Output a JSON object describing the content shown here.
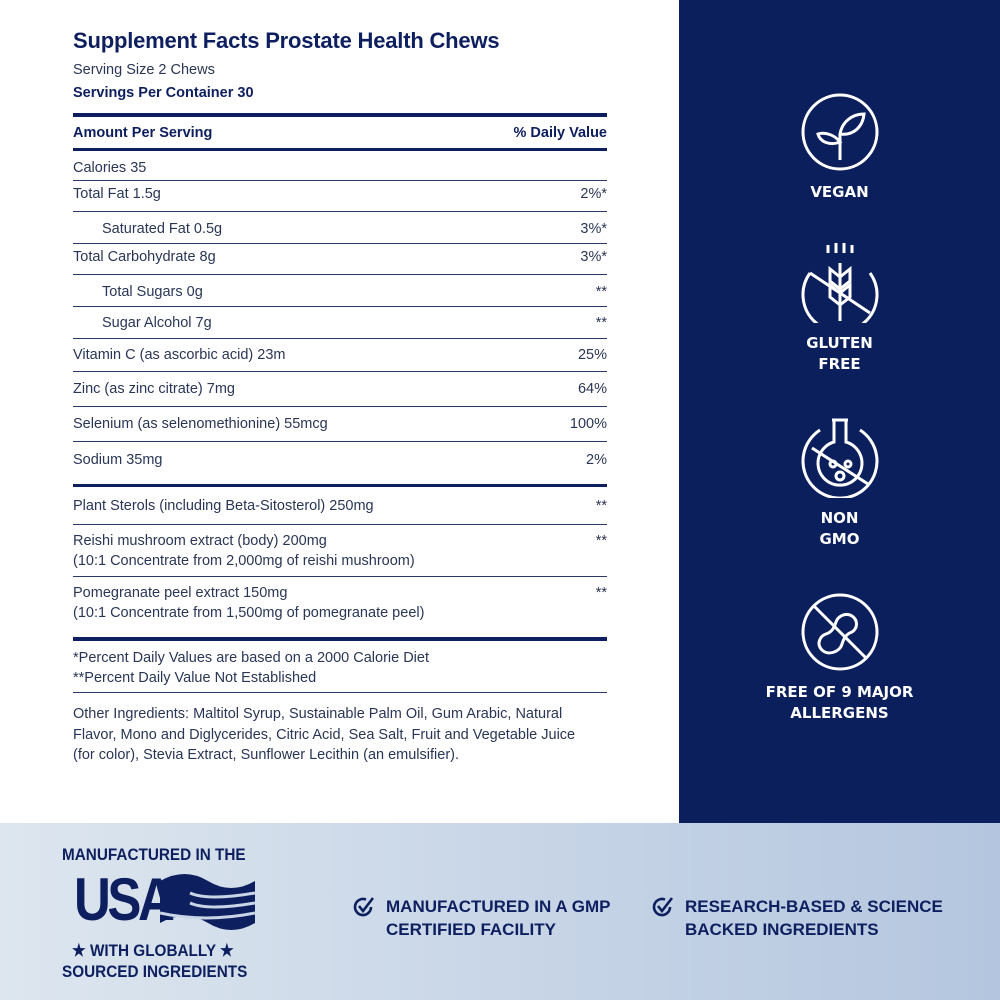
{
  "title": "Supplement Facts Prostate Health Chews",
  "serving_size": "Serving Size 2 Chews",
  "servings_per_container": "Servings Per Container 30",
  "header": {
    "amount": "Amount Per Serving",
    "dv": "% Daily Value"
  },
  "rows": [
    {
      "name": "Calories 35",
      "dv": ""
    },
    {
      "name": "Total Fat 1.5g",
      "dv": "2%*"
    },
    {
      "name": "Saturated Fat 0.5g",
      "dv": "3%*"
    },
    {
      "name": "Total Carbohydrate 8g",
      "dv": "3%*"
    },
    {
      "name": "Total Sugars 0g",
      "dv": "**"
    },
    {
      "name": "Sugar Alcohol 7g",
      "dv": "**"
    },
    {
      "name": "Vitamin C (as ascorbic acid) 23m",
      "dv": "25%"
    },
    {
      "name": "Zinc (as zinc citrate) 7mg",
      "dv": "64%"
    },
    {
      "name": "Selenium (as selenomethionine) 55mcg",
      "dv": "100%"
    },
    {
      "name": "Sodium 35mg",
      "dv": "2%"
    },
    {
      "name": "Plant Sterols (including Beta-Sitosterol) 250mg",
      "dv": "**"
    },
    {
      "name": "Reishi mushroom extract (body) 200mg",
      "sub": "(10:1 Concentrate from 2,000mg of reishi mushroom)",
      "dv": "**"
    },
    {
      "name": "Pomegranate peel extract 150mg",
      "sub": "(10:1 Concentrate from 1,500mg of pomegranate peel)",
      "dv": "**"
    }
  ],
  "footnotes": [
    "*Percent Daily Values are based on a 2000 Calorie Diet",
    "**Percent Daily Value Not Established"
  ],
  "other_ingredients": [
    "Other Ingredients: Maltitol Syrup, Sustainable Palm Oil, Gum Arabic, Natural",
    "Flavor, Mono and Diglycerides, Citric Acid, Sea Salt, Fruit and Vegetable Juice",
    "(for color), Stevia Extract, Sunflower Lecithin (an emulsifier)."
  ],
  "badges": [
    {
      "icon": "leaf-icon",
      "l1": "VEGAN",
      "l2": ""
    },
    {
      "icon": "wheat-crossed-icon",
      "l1": "GLUTEN",
      "l2": "FREE"
    },
    {
      "icon": "flask-crossed-icon",
      "l1": "NON",
      "l2": "GMO"
    },
    {
      "icon": "peanut-crossed-icon",
      "l1": "FREE OF 9 MAJOR",
      "l2": "ALLERGENS"
    }
  ],
  "usa": {
    "top": "MANUFACTURED IN THE",
    "logo": "USA",
    "mid": "★ WITH GLOBALLY ★",
    "bottom": "SOURCED INGREDIENTS"
  },
  "features": [
    {
      "l1": "MANUFACTURED IN A GMP",
      "l2": "CERTIFIED FACILITY"
    },
    {
      "l1": "RESEARCH-BASED & SCIENCE",
      "l2": "BACKED INGREDIENTS"
    }
  ],
  "colors": {
    "navy": "#0b1f5c",
    "text": "#2a3656"
  }
}
